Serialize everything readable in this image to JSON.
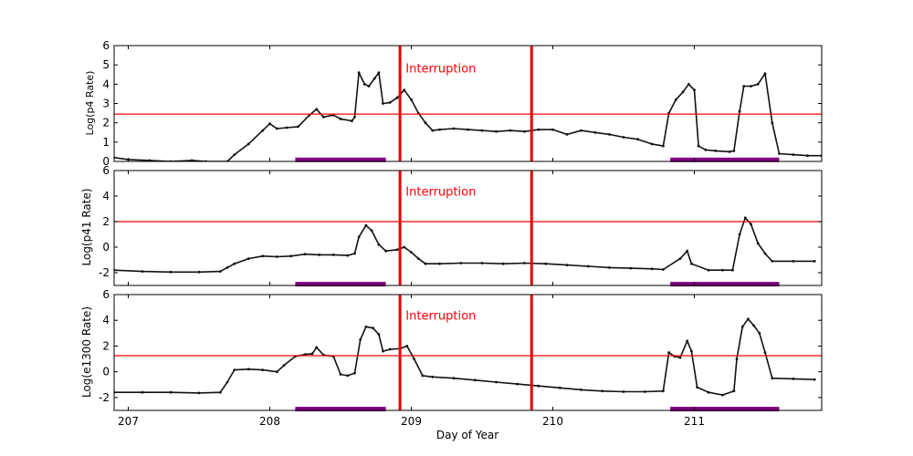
{
  "chart_data": [
    {
      "type": "scatter",
      "title": "",
      "ylabel": "Log(p4 Rate)",
      "xlim": [
        206.9,
        211.9
      ],
      "ylim": [
        0,
        6
      ],
      "yticks": [
        0,
        1,
        2,
        3,
        4,
        5,
        6
      ],
      "threshold": 2.45,
      "vlines": [
        208.92,
        209.85
      ],
      "annotation": {
        "text": "Interruption",
        "x": 208.96,
        "y": 4.85
      },
      "bars": [
        {
          "x0": 208.18,
          "x1": 208.82,
          "y": 0.08
        },
        {
          "x0": 210.83,
          "x1": 211.6,
          "y": 0.08
        }
      ],
      "series": [
        {
          "points": [
            [
              206.9,
              0.2
            ],
            [
              207.0,
              0.1
            ],
            [
              207.15,
              0.05
            ],
            [
              207.3,
              0.0
            ],
            [
              207.45,
              0.05
            ],
            [
              207.55,
              0.0
            ],
            [
              207.7,
              0.0
            ],
            [
              207.75,
              0.35
            ],
            [
              207.85,
              0.9
            ],
            [
              207.95,
              1.6
            ],
            [
              208.0,
              1.95
            ],
            [
              208.05,
              1.7
            ],
            [
              208.12,
              1.75
            ],
            [
              208.2,
              1.8
            ],
            [
              208.28,
              2.4
            ],
            [
              208.33,
              2.7
            ],
            [
              208.38,
              2.3
            ],
            [
              208.45,
              2.4
            ],
            [
              208.5,
              2.2
            ],
            [
              208.58,
              2.1
            ],
            [
              208.6,
              2.3
            ],
            [
              208.63,
              4.6
            ],
            [
              208.67,
              4.0
            ],
            [
              208.7,
              3.9
            ],
            [
              208.74,
              4.3
            ],
            [
              208.77,
              4.6
            ],
            [
              208.8,
              3.0
            ],
            [
              208.85,
              3.05
            ],
            [
              208.9,
              3.3
            ],
            [
              208.95,
              3.7
            ],
            [
              209.0,
              3.2
            ],
            [
              209.05,
              2.5
            ],
            [
              209.1,
              2.0
            ],
            [
              209.15,
              1.6
            ],
            [
              209.2,
              1.65
            ],
            [
              209.3,
              1.7
            ],
            [
              209.4,
              1.65
            ],
            [
              209.5,
              1.6
            ],
            [
              209.6,
              1.55
            ],
            [
              209.7,
              1.6
            ],
            [
              209.8,
              1.55
            ],
            [
              209.9,
              1.65
            ],
            [
              210.0,
              1.65
            ],
            [
              210.1,
              1.4
            ],
            [
              210.2,
              1.6
            ],
            [
              210.3,
              1.5
            ],
            [
              210.4,
              1.4
            ],
            [
              210.5,
              1.25
            ],
            [
              210.6,
              1.15
            ],
            [
              210.7,
              0.9
            ],
            [
              210.78,
              0.8
            ],
            [
              210.82,
              2.5
            ],
            [
              210.87,
              3.2
            ],
            [
              210.92,
              3.6
            ],
            [
              210.96,
              4.0
            ],
            [
              211.0,
              3.7
            ],
            [
              211.03,
              0.8
            ],
            [
              211.08,
              0.6
            ],
            [
              211.15,
              0.55
            ],
            [
              211.25,
              0.5
            ],
            [
              211.28,
              0.55
            ],
            [
              211.32,
              2.6
            ],
            [
              211.35,
              3.9
            ],
            [
              211.4,
              3.9
            ],
            [
              211.45,
              4.0
            ],
            [
              211.5,
              4.55
            ],
            [
              211.55,
              2.0
            ],
            [
              211.6,
              0.4
            ],
            [
              211.7,
              0.35
            ],
            [
              211.8,
              0.3
            ],
            [
              211.9,
              0.3
            ]
          ]
        }
      ]
    },
    {
      "type": "scatter",
      "title": "",
      "ylabel": "Log(p41 Rate)",
      "xlim": [
        206.9,
        211.9
      ],
      "ylim": [
        -3,
        6
      ],
      "yticks": [
        -2,
        0,
        2,
        4,
        6
      ],
      "threshold": 2.0,
      "vlines": [
        208.92,
        209.85
      ],
      "annotation": {
        "text": "Interruption",
        "x": 208.96,
        "y": 4.4
      },
      "bars": [
        {
          "x0": 208.18,
          "x1": 208.82,
          "y": -2.9
        },
        {
          "x0": 210.83,
          "x1": 211.6,
          "y": -2.9
        }
      ],
      "series": [
        {
          "points": [
            [
              206.9,
              -1.8
            ],
            [
              207.1,
              -1.9
            ],
            [
              207.3,
              -1.95
            ],
            [
              207.5,
              -1.95
            ],
            [
              207.65,
              -1.9
            ],
            [
              207.7,
              -1.6
            ],
            [
              207.75,
              -1.3
            ],
            [
              207.85,
              -0.9
            ],
            [
              207.95,
              -0.7
            ],
            [
              208.05,
              -0.75
            ],
            [
              208.15,
              -0.7
            ],
            [
              208.25,
              -0.55
            ],
            [
              208.35,
              -0.6
            ],
            [
              208.45,
              -0.6
            ],
            [
              208.55,
              -0.65
            ],
            [
              208.6,
              -0.5
            ],
            [
              208.63,
              0.8
            ],
            [
              208.68,
              1.7
            ],
            [
              208.72,
              1.3
            ],
            [
              208.77,
              0.2
            ],
            [
              208.82,
              -0.3
            ],
            [
              208.9,
              -0.2
            ],
            [
              208.95,
              0.0
            ],
            [
              209.0,
              -0.4
            ],
            [
              209.05,
              -0.9
            ],
            [
              209.1,
              -1.3
            ],
            [
              209.2,
              -1.3
            ],
            [
              209.35,
              -1.25
            ],
            [
              209.5,
              -1.25
            ],
            [
              209.65,
              -1.3
            ],
            [
              209.8,
              -1.25
            ],
            [
              209.95,
              -1.3
            ],
            [
              210.1,
              -1.4
            ],
            [
              210.25,
              -1.5
            ],
            [
              210.4,
              -1.6
            ],
            [
              210.55,
              -1.65
            ],
            [
              210.7,
              -1.7
            ],
            [
              210.78,
              -1.75
            ],
            [
              210.9,
              -0.9
            ],
            [
              210.95,
              -0.3
            ],
            [
              210.98,
              -1.3
            ],
            [
              211.1,
              -1.8
            ],
            [
              211.2,
              -1.8
            ],
            [
              211.27,
              -1.8
            ],
            [
              211.32,
              1.0
            ],
            [
              211.36,
              2.3
            ],
            [
              211.4,
              1.8
            ],
            [
              211.45,
              0.3
            ],
            [
              211.5,
              -0.5
            ],
            [
              211.55,
              -1.1
            ],
            [
              211.7,
              -1.1
            ],
            [
              211.85,
              -1.1
            ]
          ]
        }
      ]
    },
    {
      "type": "scatter",
      "title": "",
      "ylabel": "Log(e1300 Rate)",
      "xlabel": "Day of Year",
      "xlim": [
        206.9,
        211.9
      ],
      "ylim": [
        -3,
        6
      ],
      "yticks": [
        -2,
        0,
        2,
        4,
        6
      ],
      "xticks": [
        207,
        208,
        209,
        210,
        211
      ],
      "threshold": 1.25,
      "vlines": [
        208.92,
        209.85
      ],
      "annotation": {
        "text": "Interruption",
        "x": 208.96,
        "y": 4.4
      },
      "bars": [
        {
          "x0": 208.18,
          "x1": 208.82,
          "y": -2.9
        },
        {
          "x0": 210.83,
          "x1": 211.6,
          "y": -2.9
        }
      ],
      "series": [
        {
          "points": [
            [
              206.9,
              -1.6
            ],
            [
              207.1,
              -1.6
            ],
            [
              207.3,
              -1.6
            ],
            [
              207.5,
              -1.65
            ],
            [
              207.65,
              -1.6
            ],
            [
              207.7,
              -0.8
            ],
            [
              207.75,
              0.15
            ],
            [
              207.85,
              0.2
            ],
            [
              207.95,
              0.15
            ],
            [
              208.05,
              0.0
            ],
            [
              208.1,
              0.5
            ],
            [
              208.18,
              1.2
            ],
            [
              208.25,
              1.35
            ],
            [
              208.3,
              1.4
            ],
            [
              208.33,
              1.9
            ],
            [
              208.38,
              1.3
            ],
            [
              208.45,
              1.2
            ],
            [
              208.5,
              -0.2
            ],
            [
              208.55,
              -0.3
            ],
            [
              208.6,
              -0.1
            ],
            [
              208.64,
              2.5
            ],
            [
              208.68,
              3.5
            ],
            [
              208.73,
              3.4
            ],
            [
              208.77,
              2.9
            ],
            [
              208.8,
              1.6
            ],
            [
              208.85,
              1.75
            ],
            [
              208.92,
              1.8
            ],
            [
              208.97,
              2.0
            ],
            [
              209.02,
              1.0
            ],
            [
              209.08,
              -0.3
            ],
            [
              209.15,
              -0.4
            ],
            [
              209.3,
              -0.5
            ],
            [
              209.45,
              -0.65
            ],
            [
              209.6,
              -0.8
            ],
            [
              209.75,
              -0.95
            ],
            [
              209.9,
              -1.1
            ],
            [
              210.05,
              -1.25
            ],
            [
              210.2,
              -1.4
            ],
            [
              210.35,
              -1.5
            ],
            [
              210.5,
              -1.55
            ],
            [
              210.65,
              -1.55
            ],
            [
              210.78,
              -1.5
            ],
            [
              210.82,
              1.5
            ],
            [
              210.86,
              1.2
            ],
            [
              210.9,
              1.1
            ],
            [
              210.95,
              2.4
            ],
            [
              210.98,
              1.6
            ],
            [
              211.02,
              -1.2
            ],
            [
              211.1,
              -1.6
            ],
            [
              211.2,
              -1.8
            ],
            [
              211.28,
              -1.5
            ],
            [
              211.3,
              1.0
            ],
            [
              211.34,
              3.5
            ],
            [
              211.38,
              4.1
            ],
            [
              211.42,
              3.6
            ],
            [
              211.46,
              3.0
            ],
            [
              211.5,
              1.5
            ],
            [
              211.55,
              -0.5
            ],
            [
              211.7,
              -0.55
            ],
            [
              211.85,
              -0.6
            ]
          ]
        }
      ]
    }
  ],
  "colors": {
    "data": "#111111",
    "threshold": "#ff0000",
    "interruption": "#ee0000",
    "bar": "#800080",
    "axes": "#000000"
  }
}
